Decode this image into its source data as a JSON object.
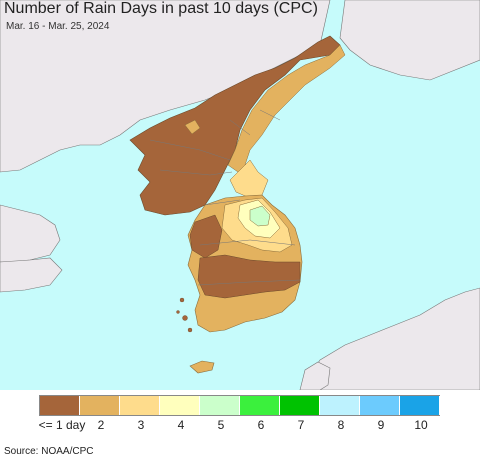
{
  "title": "Number of Rain Days in past 10 days (CPC)",
  "date_range": "Mar. 16 - Mar. 25, 2024",
  "source": "Source: NOAA/CPC",
  "legend": {
    "items": [
      {
        "label": "<= 1 day",
        "color": "#a5653a"
      },
      {
        "label": "2",
        "color": "#e3b25f"
      },
      {
        "label": "3",
        "color": "#fedc8c"
      },
      {
        "label": "4",
        "color": "#ffffbd"
      },
      {
        "label": "5",
        "color": "#cbffcb"
      },
      {
        "label": "6",
        "color": "#3bf03d"
      },
      {
        "label": "7",
        "color": "#00c201"
      },
      {
        "label": "8",
        "color": "#bdf2fe"
      },
      {
        "label": "9",
        "color": "#6ccbfd"
      },
      {
        "label": "10",
        "color": "#1aa3e7"
      }
    ]
  },
  "colors": {
    "ocean": "#c6fbfb",
    "other_land": "#ece8ec",
    "border": "#666666"
  }
}
